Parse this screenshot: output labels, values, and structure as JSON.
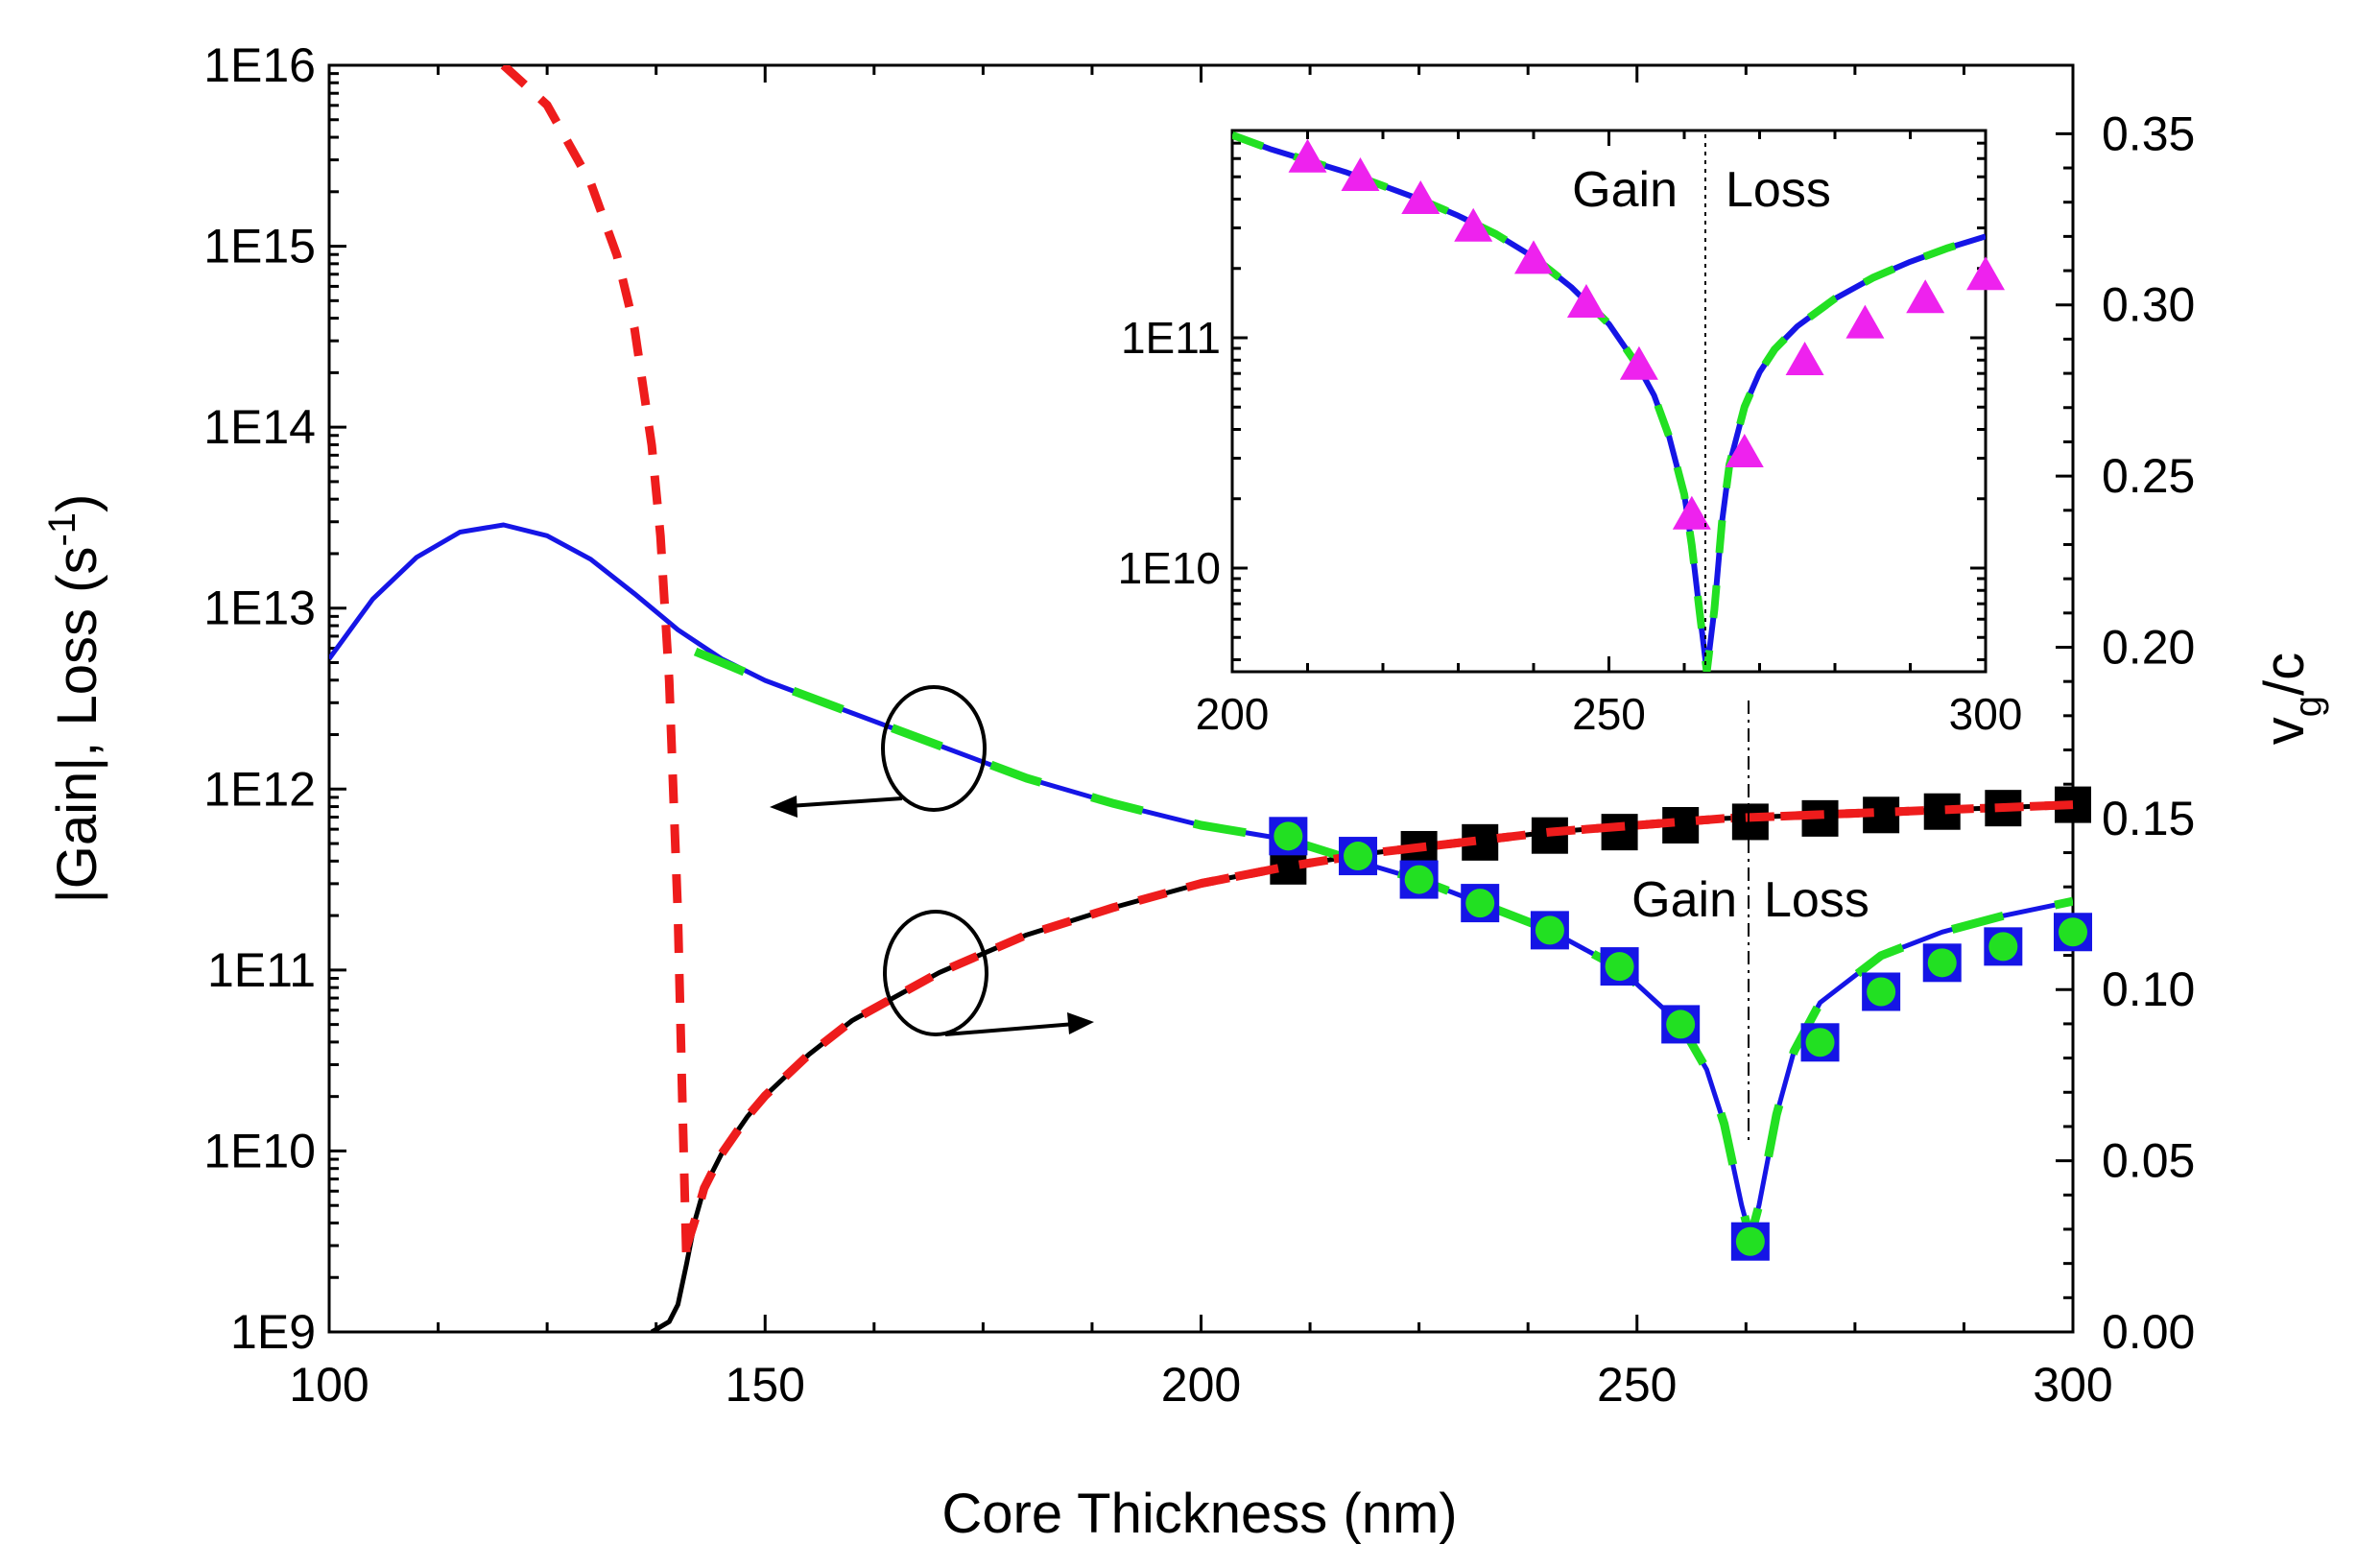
{
  "chart_data": {
    "type": "line",
    "xlabel": "Core Thickness (nm)",
    "ylabel_left": {
      "main": "|Gain|, Loss (s",
      "sup": "-1",
      "end": ")"
    },
    "ylabel_right": {
      "main": "v",
      "sub": "g",
      "end": "/c"
    },
    "xlim": [
      100,
      300
    ],
    "ylim_left_log10": [
      9,
      16
    ],
    "ylim_right": [
      0,
      0.37
    ],
    "x_ticks": [
      100,
      150,
      200,
      250,
      300
    ],
    "x_tick_labels": [
      "100",
      "150",
      "200",
      "250",
      "300"
    ],
    "y_left_tick_labels": [
      "1E9",
      "1E10",
      "1E11",
      "1E12",
      "1E13",
      "1E14",
      "1E15",
      "1E16"
    ],
    "y_right_ticks": [
      0,
      0.05,
      0.1,
      0.15,
      0.2,
      0.25,
      0.3,
      0.35
    ],
    "y_right_tick_labels": [
      "0.00",
      "0.05",
      "0.10",
      "0.15",
      "0.20",
      "0.25",
      "0.30",
      "0.35"
    ],
    "annotations": {
      "gain": "Gain",
      "loss": "Loss",
      "zero_crossing_x": 263
    },
    "colors": {
      "blue": "#1515e6",
      "green": "#22e022",
      "red": "#ee1c1c",
      "black": "#000000",
      "magenta": "#ee22ee"
    },
    "series": [
      {
        "name": "gain-loss-curve",
        "axis": "left",
        "style": "solid",
        "color": "#1515e6",
        "x": [
          100,
          105,
          110,
          115,
          120,
          125,
          130,
          135,
          140,
          145,
          150,
          160,
          170,
          180,
          190,
          200,
          210,
          218,
          225,
          232,
          240,
          248,
          255,
          258,
          260,
          262,
          263,
          264,
          266,
          268,
          271,
          278,
          285,
          292,
          300
        ],
        "log10_y": [
          12.72,
          13.05,
          13.28,
          13.42,
          13.46,
          13.4,
          13.27,
          13.08,
          12.88,
          12.72,
          12.6,
          12.42,
          12.24,
          12.06,
          11.92,
          11.8,
          11.72,
          11.6,
          11.5,
          11.37,
          11.22,
          11.01,
          10.7,
          10.45,
          10.15,
          9.7,
          9.52,
          9.7,
          10.2,
          10.55,
          10.82,
          11.08,
          11.21,
          11.3,
          11.38
        ]
      },
      {
        "name": "gain-loss-dashed-green",
        "axis": "left",
        "style": "dashed",
        "color": "#22e022",
        "x": [
          142,
          150,
          160,
          170,
          180,
          190,
          200,
          210,
          218,
          225,
          232,
          240,
          248,
          255,
          258,
          260,
          262,
          263,
          264,
          266,
          268,
          271,
          278,
          285,
          292,
          300
        ],
        "log10_y": [
          12.76,
          12.6,
          12.42,
          12.24,
          12.06,
          11.92,
          11.8,
          11.72,
          11.6,
          11.5,
          11.37,
          11.22,
          11.01,
          10.7,
          10.45,
          10.15,
          9.7,
          9.52,
          9.7,
          10.2,
          10.55,
          10.82,
          11.08,
          11.21,
          11.3,
          11.38
        ]
      },
      {
        "name": "gain-loss-squares",
        "axis": "left",
        "marker": "square",
        "color": "#1515e6",
        "x": [
          210,
          218,
          225,
          232,
          240,
          248,
          255,
          263,
          271,
          278,
          285,
          292,
          300
        ],
        "log10_y": [
          11.74,
          11.63,
          11.5,
          11.37,
          11.22,
          11.02,
          10.7,
          9.5,
          10.6,
          10.88,
          11.04,
          11.13,
          11.21
        ]
      },
      {
        "name": "gain-loss-circles",
        "axis": "left",
        "marker": "circle",
        "color": "#22e022",
        "x": [
          210,
          218,
          225,
          232,
          240,
          248,
          255,
          263,
          271,
          278,
          285,
          292,
          300
        ],
        "log10_y": [
          11.74,
          11.63,
          11.5,
          11.37,
          11.22,
          11.02,
          10.7,
          9.5,
          10.6,
          10.88,
          11.04,
          11.13,
          11.21
        ]
      },
      {
        "name": "red-dashed-steep",
        "axis": "left",
        "style": "dashed",
        "color": "#ee1c1c",
        "x": [
          120,
          125,
          130,
          133,
          135,
          137,
          138,
          139,
          140,
          140.5,
          141
        ],
        "log10_y": [
          16.0,
          15.78,
          15.35,
          14.95,
          14.55,
          13.9,
          13.4,
          12.6,
          11.3,
          10.3,
          9.35
        ]
      },
      {
        "name": "vg-black-curve",
        "axis": "right",
        "style": "solid",
        "color": "#000000",
        "x": [
          137,
          139,
          140,
          141,
          142,
          143,
          145,
          148,
          150,
          155,
          160,
          170,
          180,
          190,
          200,
          210,
          220,
          230,
          240,
          250,
          260,
          270,
          280,
          290,
          300
        ],
        "y": [
          0,
          0.003,
          0.008,
          0.02,
          0.033,
          0.042,
          0.052,
          0.063,
          0.069,
          0.081,
          0.091,
          0.105,
          0.116,
          0.124,
          0.131,
          0.136,
          0.14,
          0.143,
          0.146,
          0.148,
          0.15,
          0.151,
          0.152,
          0.153,
          0.154
        ]
      },
      {
        "name": "vg-red-dashed",
        "axis": "right",
        "style": "dashed",
        "color": "#ee1c1c",
        "x": [
          141,
          142,
          143,
          145,
          148,
          150,
          155,
          160,
          170,
          180,
          190,
          200,
          210,
          220,
          230,
          240,
          250,
          260,
          270,
          280,
          290,
          300
        ],
        "y": [
          0.025,
          0.033,
          0.042,
          0.052,
          0.063,
          0.069,
          0.081,
          0.091,
          0.105,
          0.116,
          0.124,
          0.131,
          0.136,
          0.14,
          0.143,
          0.146,
          0.148,
          0.15,
          0.151,
          0.152,
          0.153,
          0.154
        ]
      },
      {
        "name": "vg-black-squares",
        "axis": "right",
        "marker": "square",
        "color": "#000000",
        "x": [
          210,
          218,
          225,
          232,
          240,
          248,
          255,
          263,
          271,
          278,
          285,
          292,
          300
        ],
        "y": [
          0.136,
          0.139,
          0.141,
          0.143,
          0.145,
          0.146,
          0.148,
          0.149,
          0.15,
          0.151,
          0.152,
          0.153,
          0.154
        ]
      }
    ],
    "inset": {
      "xlim": [
        200,
        300
      ],
      "ylim_log10": [
        9.55,
        11.9
      ],
      "x_tick_labels": [
        "200",
        "250",
        "300"
      ],
      "y_tick_labels": [
        "1E10",
        "1E11"
      ],
      "zero_crossing_x": 263,
      "series": [
        {
          "name": "inset-blue-curve",
          "style": "solid",
          "color": "#1515e6",
          "x": [
            200,
            205,
            210,
            215,
            220,
            225,
            230,
            235,
            240,
            245,
            250,
            254,
            256,
            258,
            260,
            261,
            262,
            263,
            264,
            265,
            266,
            268,
            270,
            272,
            275,
            280,
            285,
            290,
            295,
            300
          ],
          "log10_y": [
            11.88,
            11.82,
            11.77,
            11.72,
            11.66,
            11.6,
            11.53,
            11.45,
            11.35,
            11.22,
            11.06,
            10.87,
            10.75,
            10.57,
            10.32,
            10.1,
            9.82,
            9.55,
            9.82,
            10.2,
            10.45,
            10.7,
            10.85,
            10.95,
            11.05,
            11.17,
            11.26,
            11.33,
            11.39,
            11.44
          ]
        },
        {
          "name": "inset-green-dashed",
          "style": "dashed",
          "color": "#22e022",
          "x": [
            200,
            205,
            210,
            215,
            220,
            225,
            230,
            235,
            240,
            245,
            250,
            254,
            256,
            258,
            260,
            261,
            262,
            263,
            264,
            265,
            266,
            268,
            270,
            272,
            275,
            280,
            285,
            290,
            295,
            300
          ],
          "log10_y": [
            11.88,
            11.82,
            11.77,
            11.72,
            11.66,
            11.6,
            11.53,
            11.45,
            11.35,
            11.22,
            11.06,
            10.87,
            10.75,
            10.57,
            10.32,
            10.1,
            9.82,
            9.55,
            9.82,
            10.2,
            10.45,
            10.7,
            10.85,
            10.95,
            11.05,
            11.17,
            11.26,
            11.33,
            11.39,
            11.44
          ]
        },
        {
          "name": "inset-triangles",
          "marker": "triangle",
          "color": "#ee22ee",
          "x": [
            210,
            217,
            225,
            232,
            240,
            247,
            254,
            261,
            268,
            276,
            284,
            292,
            300
          ],
          "log10_y": [
            11.78,
            11.7,
            11.6,
            11.48,
            11.34,
            11.15,
            10.88,
            10.23,
            10.5,
            10.9,
            11.06,
            11.17,
            11.27
          ]
        }
      ]
    }
  }
}
